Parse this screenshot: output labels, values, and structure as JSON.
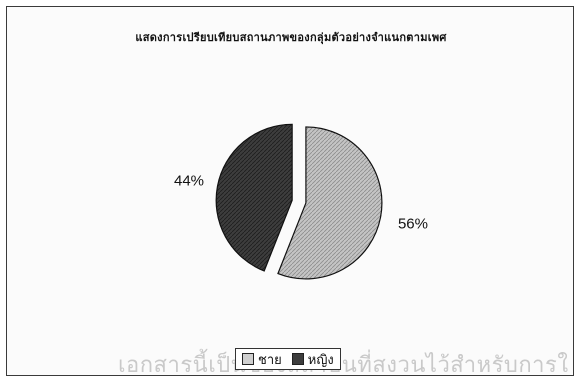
{
  "chart_data": {
    "type": "pie",
    "title": "แสดงการเปรียบเทียบสถานภาพของกลุ่มตัวอย่างจำแนกตามเพศ",
    "slices": [
      {
        "label": "ชาย",
        "value": 56,
        "display": "56%",
        "color": "#b8b8b8"
      },
      {
        "label": "หญิง",
        "value": 44,
        "display": "44%",
        "color": "#3d3d3d"
      }
    ],
    "legend_position": "bottom"
  },
  "watermark": "เอกสารนี้เป็นของสถาบันที่สงวนไว้สำหรับการใ"
}
